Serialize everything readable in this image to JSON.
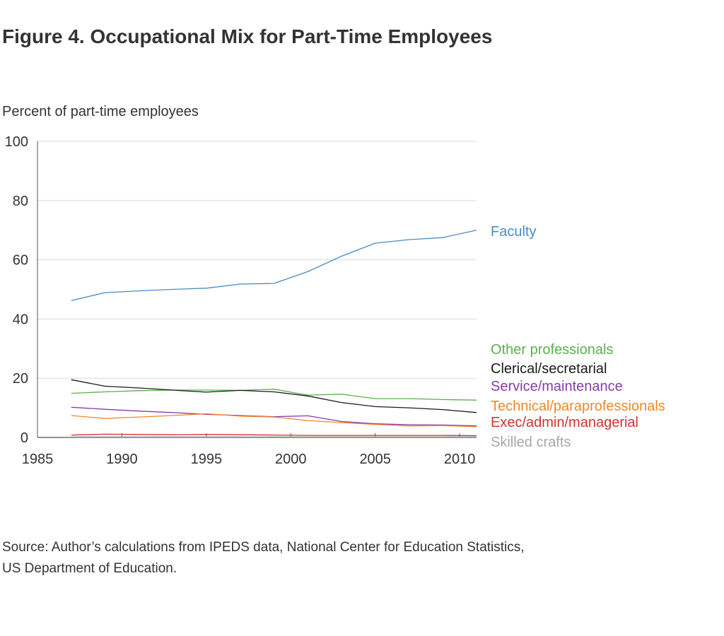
{
  "title": "Figure 4. Occupational Mix for Part-Time Employees",
  "source_line1": "Source: Author’s calculations from IPEDS data, National Center for Education Statistics,",
  "source_line2": "US Department of Education.",
  "chart_data": {
    "type": "line",
    "title": "Figure 4. Occupational Mix for Part-Time Employees",
    "ylabel": "Percent of part-time employees",
    "xlabel": "",
    "xlim": [
      1985,
      2011
    ],
    "ylim": [
      0,
      100
    ],
    "x_ticks": [
      1985,
      1990,
      1995,
      2000,
      2005,
      2010
    ],
    "y_ticks": [
      0,
      20,
      40,
      60,
      80,
      100
    ],
    "grid": "horizontal",
    "legend": "direct labels at right",
    "x": [
      1987,
      1989,
      1991,
      1993,
      1995,
      1997,
      1999,
      2001,
      2003,
      2005,
      2007,
      2009,
      2011
    ],
    "series": [
      {
        "name": "Faculty",
        "color": "#4a8bc2",
        "values": [
          46.2,
          48.9,
          49.5,
          50.0,
          50.4,
          51.8,
          52.0,
          56.0,
          61.2,
          65.6,
          66.8,
          67.5,
          70.0
        ]
      },
      {
        "name": "Other professionals",
        "color": "#5ab04e",
        "values": [
          14.9,
          15.4,
          15.8,
          16.0,
          16.0,
          15.9,
          16.3,
          14.3,
          14.6,
          13.1,
          13.1,
          12.8,
          12.6
        ]
      },
      {
        "name": "Clerical/secretarial",
        "color": "#1a1a1a",
        "values": [
          19.5,
          17.3,
          16.7,
          16.0,
          15.3,
          15.9,
          15.4,
          14.0,
          11.8,
          10.4,
          10.0,
          9.4,
          8.4
        ]
      },
      {
        "name": "Service/maintenance",
        "color": "#8a3ba8",
        "values": [
          10.2,
          9.5,
          8.9,
          8.4,
          7.8,
          7.4,
          7.0,
          7.3,
          5.4,
          4.6,
          4.3,
          4.2,
          3.9
        ]
      },
      {
        "name": "Technical/paraprofessionals",
        "color": "#f0872a",
        "values": [
          7.4,
          6.4,
          6.9,
          7.4,
          8.0,
          7.2,
          6.9,
          5.7,
          5.0,
          4.4,
          3.9,
          4.0,
          3.6
        ]
      },
      {
        "name": "Exec/admin/managerial",
        "color": "#d92f2f",
        "values": [
          0.8,
          1.1,
          1.0,
          0.9,
          1.0,
          0.9,
          0.8,
          0.7,
          0.7,
          0.7,
          0.7,
          0.7,
          0.6
        ]
      },
      {
        "name": "Skilled crafts",
        "color": "#a8a8a8",
        "values": [
          0.2,
          0.2,
          0.2,
          0.2,
          0.2,
          0.2,
          0.2,
          0.2,
          0.2,
          0.2,
          0.2,
          0.2,
          0.2
        ]
      }
    ]
  }
}
